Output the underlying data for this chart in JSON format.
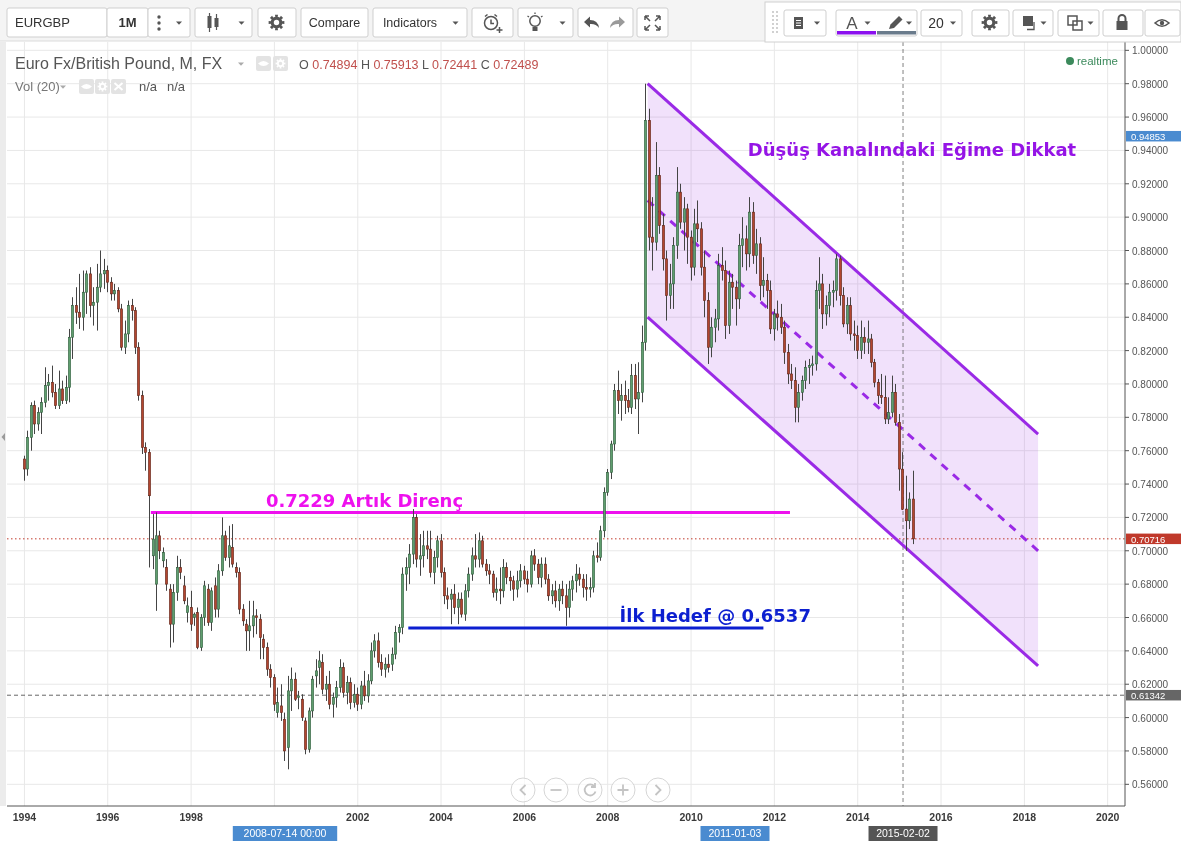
{
  "chart_data": {
    "type": "candlestick",
    "title": "Euro Fx/British Pound, M, FX",
    "subtitle": "O 0.74894 H 0.75913 L 0.72441 C 0.72489",
    "x": [
      "1994-01",
      "1994-02",
      "1994-03",
      "1994-04",
      "1994-05",
      "1994-06",
      "1994-07",
      "1994-08",
      "1994-09",
      "1994-10",
      "1994-11",
      "1994-12",
      "1995-01",
      "1995-02",
      "1995-03",
      "1995-04",
      "1995-05",
      "1995-06",
      "1995-07",
      "1995-08",
      "1995-09",
      "1995-10",
      "1995-11",
      "1995-12",
      "1996-01",
      "1996-02",
      "1996-03",
      "1996-04",
      "1996-05",
      "1996-06",
      "1996-07",
      "1996-08",
      "1996-09",
      "1996-10",
      "1996-11",
      "1996-12",
      "1997-01",
      "1997-02",
      "1997-03",
      "1997-04",
      "1997-05",
      "1997-06",
      "1997-07",
      "1997-08",
      "1997-09",
      "1997-10",
      "1997-11",
      "1997-12",
      "1998-01",
      "1998-02",
      "1998-03",
      "1998-04",
      "1998-05",
      "1998-06",
      "1998-07",
      "1998-08",
      "1998-09",
      "1998-10",
      "1998-11",
      "1998-12",
      "1999-01",
      "1999-02",
      "1999-03",
      "1999-04",
      "1999-05",
      "1999-06",
      "1999-07",
      "1999-08",
      "1999-09",
      "1999-10",
      "1999-11",
      "1999-12",
      "2000-01",
      "2000-02",
      "2000-03",
      "2000-04",
      "2000-05",
      "2000-06",
      "2000-07",
      "2000-08",
      "2000-09",
      "2000-10",
      "2000-11",
      "2000-12",
      "2001-01",
      "2001-02",
      "2001-03",
      "2001-04",
      "2001-05",
      "2001-06",
      "2001-07",
      "2001-08",
      "2001-09",
      "2001-10",
      "2001-11",
      "2001-12",
      "2002-01",
      "2002-02",
      "2002-03",
      "2002-04",
      "2002-05",
      "2002-06",
      "2002-07",
      "2002-08",
      "2002-09",
      "2002-10",
      "2002-11",
      "2002-12",
      "2003-01",
      "2003-02",
      "2003-03",
      "2003-04",
      "2003-05",
      "2003-06",
      "2003-07",
      "2003-08",
      "2003-09",
      "2003-10",
      "2003-11",
      "2003-12",
      "2004-01",
      "2004-02",
      "2004-03",
      "2004-04",
      "2004-05",
      "2004-06",
      "2004-07",
      "2004-08",
      "2004-09",
      "2004-10",
      "2004-11",
      "2004-12",
      "2005-01",
      "2005-02",
      "2005-03",
      "2005-04",
      "2005-05",
      "2005-06",
      "2005-07",
      "2005-08",
      "2005-09",
      "2005-10",
      "2005-11",
      "2005-12",
      "2006-01",
      "2006-02",
      "2006-03",
      "2006-04",
      "2006-05",
      "2006-06",
      "2006-07",
      "2006-08",
      "2006-09",
      "2006-10",
      "2006-11",
      "2006-12",
      "2007-01",
      "2007-02",
      "2007-03",
      "2007-04",
      "2007-05",
      "2007-06",
      "2007-07",
      "2007-08",
      "2007-09",
      "2007-10",
      "2007-11",
      "2007-12",
      "2008-01",
      "2008-02",
      "2008-03",
      "2008-04",
      "2008-05",
      "2008-06",
      "2008-07",
      "2008-08",
      "2008-09",
      "2008-10",
      "2008-11",
      "2008-12",
      "2009-01",
      "2009-02",
      "2009-03",
      "2009-04",
      "2009-05",
      "2009-06",
      "2009-07",
      "2009-08",
      "2009-09",
      "2009-10",
      "2009-11",
      "2009-12",
      "2010-01",
      "2010-02",
      "2010-03",
      "2010-04",
      "2010-05",
      "2010-06",
      "2010-07",
      "2010-08",
      "2010-09",
      "2010-10",
      "2010-11",
      "2010-12",
      "2011-01",
      "2011-02",
      "2011-03",
      "2011-04",
      "2011-05",
      "2011-06",
      "2011-07",
      "2011-08",
      "2011-09",
      "2011-10",
      "2011-11",
      "2011-12",
      "2012-01",
      "2012-02",
      "2012-03",
      "2012-04",
      "2012-05",
      "2012-06",
      "2012-07",
      "2012-08",
      "2012-09",
      "2012-10",
      "2012-11",
      "2012-12",
      "2013-01",
      "2013-02",
      "2013-03",
      "2013-04",
      "2013-05",
      "2013-06",
      "2013-07",
      "2013-08",
      "2013-09",
      "2013-10",
      "2013-11",
      "2013-12",
      "2014-01",
      "2014-02",
      "2014-03",
      "2014-04",
      "2014-05",
      "2014-06",
      "2014-07",
      "2014-08",
      "2014-09",
      "2014-10",
      "2014-11",
      "2014-12",
      "2015-01",
      "2015-02",
      "2015-03",
      "2015-04",
      "2015-05"
    ],
    "ohlc": [
      [
        0.755,
        0.757,
        0.742,
        0.749
      ],
      [
        0.749,
        0.772,
        0.745,
        0.768
      ],
      [
        0.768,
        0.789,
        0.76,
        0.787
      ],
      [
        0.787,
        0.79,
        0.77,
        0.776
      ],
      [
        0.776,
        0.786,
        0.772,
        0.783
      ],
      [
        0.783,
        0.792,
        0.77,
        0.789
      ],
      [
        0.789,
        0.81,
        0.786,
        0.799
      ],
      [
        0.799,
        0.806,
        0.79,
        0.801
      ],
      [
        0.801,
        0.811,
        0.792,
        0.795
      ],
      [
        0.795,
        0.8,
        0.785,
        0.787
      ],
      [
        0.787,
        0.808,
        0.785,
        0.797
      ],
      [
        0.797,
        0.802,
        0.788,
        0.79
      ],
      [
        0.79,
        0.805,
        0.788,
        0.798
      ],
      [
        0.798,
        0.833,
        0.789,
        0.828
      ],
      [
        0.828,
        0.852,
        0.815,
        0.847
      ],
      [
        0.847,
        0.858,
        0.836,
        0.843
      ],
      [
        0.843,
        0.866,
        0.833,
        0.84
      ],
      [
        0.84,
        0.868,
        0.832,
        0.855
      ],
      [
        0.855,
        0.868,
        0.842,
        0.866
      ],
      [
        0.866,
        0.87,
        0.84,
        0.847
      ],
      [
        0.847,
        0.858,
        0.835,
        0.849
      ],
      [
        0.849,
        0.872,
        0.832,
        0.858
      ],
      [
        0.858,
        0.88,
        0.855,
        0.866
      ],
      [
        0.866,
        0.875,
        0.857,
        0.868
      ],
      [
        0.868,
        0.871,
        0.855,
        0.861
      ],
      [
        0.861,
        0.864,
        0.85,
        0.854
      ],
      [
        0.854,
        0.86,
        0.85,
        0.856
      ],
      [
        0.856,
        0.858,
        0.843,
        0.845
      ],
      [
        0.845,
        0.848,
        0.82,
        0.822
      ],
      [
        0.822,
        0.838,
        0.818,
        0.83
      ],
      [
        0.83,
        0.85,
        0.825,
        0.847
      ],
      [
        0.847,
        0.851,
        0.838,
        0.844
      ],
      [
        0.844,
        0.846,
        0.818,
        0.822
      ],
      [
        0.822,
        0.825,
        0.79,
        0.793
      ],
      [
        0.793,
        0.796,
        0.758,
        0.762
      ],
      [
        0.762,
        0.765,
        0.748,
        0.759
      ],
      [
        0.759,
        0.761,
        0.69,
        0.733
      ],
      [
        0.697,
        0.722,
        0.689,
        0.707
      ],
      [
        0.68,
        0.723,
        0.664,
        0.709
      ],
      [
        0.709,
        0.712,
        0.695,
        0.7
      ],
      [
        0.694,
        0.702,
        0.69,
        0.699
      ],
      [
        0.69,
        0.695,
        0.676,
        0.68
      ],
      [
        0.677,
        0.68,
        0.642,
        0.656
      ],
      [
        0.656,
        0.68,
        0.645,
        0.675
      ],
      [
        0.675,
        0.697,
        0.67,
        0.69
      ],
      [
        0.69,
        0.695,
        0.683,
        0.687
      ],
      [
        0.679,
        0.685,
        0.668,
        0.67
      ],
      [
        0.663,
        0.672,
        0.657,
        0.667
      ],
      [
        0.666,
        0.676,
        0.652,
        0.656
      ],
      [
        0.66,
        0.663,
        0.655,
        0.662
      ],
      [
        0.663,
        0.666,
        0.641,
        0.642
      ],
      [
        0.642,
        0.662,
        0.64,
        0.66
      ],
      [
        0.66,
        0.682,
        0.655,
        0.679
      ],
      [
        0.677,
        0.68,
        0.655,
        0.657
      ],
      [
        0.657,
        0.678,
        0.652,
        0.676
      ],
      [
        0.679,
        0.684,
        0.66,
        0.665
      ],
      [
        0.665,
        0.692,
        0.66,
        0.688
      ],
      [
        0.688,
        0.72,
        0.685,
        0.709
      ],
      [
        0.709,
        0.712,
        0.694,
        0.696
      ],
      [
        0.696,
        0.715,
        0.69,
        0.703
      ],
      [
        0.702,
        0.716,
        0.69,
        0.692
      ],
      [
        0.69,
        0.693,
        0.684,
        0.687
      ],
      [
        0.687,
        0.69,
        0.662,
        0.665
      ],
      [
        0.665,
        0.668,
        0.655,
        0.658
      ],
      [
        0.656,
        0.659,
        0.64,
        0.652
      ],
      [
        0.652,
        0.67,
        0.64,
        0.655
      ],
      [
        0.655,
        0.67,
        0.648,
        0.661
      ],
      [
        0.661,
        0.665,
        0.65,
        0.66
      ],
      [
        0.659,
        0.662,
        0.635,
        0.648
      ],
      [
        0.647,
        0.65,
        0.635,
        0.642
      ],
      [
        0.642,
        0.645,
        0.625,
        0.629
      ],
      [
        0.629,
        0.632,
        0.618,
        0.624
      ],
      [
        0.624,
        0.626,
        0.604,
        0.608
      ],
      [
        0.603,
        0.618,
        0.6,
        0.609
      ],
      [
        0.607,
        0.62,
        0.598,
        0.603
      ],
      [
        0.599,
        0.603,
        0.574,
        0.58
      ],
      [
        0.582,
        0.625,
        0.569,
        0.616
      ],
      [
        0.616,
        0.63,
        0.604,
        0.623
      ],
      [
        0.623,
        0.627,
        0.61,
        0.611
      ],
      [
        0.612,
        0.616,
        0.605,
        0.613
      ],
      [
        0.611,
        0.614,
        0.598,
        0.6
      ],
      [
        0.598,
        0.6,
        0.578,
        0.581
      ],
      [
        0.581,
        0.606,
        0.579,
        0.604
      ],
      [
        0.604,
        0.625,
        0.6,
        0.623
      ],
      [
        0.625,
        0.635,
        0.618,
        0.628
      ],
      [
        0.63,
        0.64,
        0.62,
        0.634
      ],
      [
        0.633,
        0.638,
        0.614,
        0.617
      ],
      [
        0.617,
        0.625,
        0.61,
        0.62
      ],
      [
        0.62,
        0.628,
        0.605,
        0.608
      ],
      [
        0.608,
        0.615,
        0.6,
        0.612
      ],
      [
        0.612,
        0.622,
        0.606,
        0.618
      ],
      [
        0.618,
        0.635,
        0.615,
        0.63
      ],
      [
        0.63,
        0.633,
        0.612,
        0.615
      ],
      [
        0.615,
        0.625,
        0.608,
        0.621
      ],
      [
        0.621,
        0.624,
        0.605,
        0.609
      ],
      [
        0.609,
        0.62,
        0.606,
        0.614
      ],
      [
        0.614,
        0.618,
        0.604,
        0.608
      ],
      [
        0.608,
        0.622,
        0.605,
        0.619
      ],
      [
        0.619,
        0.628,
        0.61,
        0.613
      ],
      [
        0.613,
        0.626,
        0.609,
        0.622
      ],
      [
        0.622,
        0.645,
        0.62,
        0.64
      ],
      [
        0.64,
        0.65,
        0.636,
        0.646
      ],
      [
        0.646,
        0.651,
        0.63,
        0.633
      ],
      [
        0.633,
        0.638,
        0.625,
        0.629
      ],
      [
        0.629,
        0.636,
        0.624,
        0.632
      ],
      [
        0.632,
        0.638,
        0.627,
        0.63
      ],
      [
        0.632,
        0.642,
        0.628,
        0.638
      ],
      [
        0.638,
        0.655,
        0.635,
        0.651
      ],
      [
        0.651,
        0.656,
        0.645,
        0.654
      ],
      [
        0.654,
        0.69,
        0.65,
        0.686
      ],
      [
        0.686,
        0.696,
        0.676,
        0.69
      ],
      [
        0.69,
        0.704,
        0.68,
        0.698
      ],
      [
        0.698,
        0.725,
        0.692,
        0.72
      ],
      [
        0.72,
        0.722,
        0.69,
        0.695
      ],
      [
        0.695,
        0.71,
        0.685,
        0.697
      ],
      [
        0.697,
        0.712,
        0.69,
        0.703
      ],
      [
        0.703,
        0.712,
        0.695,
        0.701
      ],
      [
        0.701,
        0.712,
        0.684,
        0.687
      ],
      [
        0.687,
        0.7,
        0.68,
        0.696
      ],
      [
        0.696,
        0.709,
        0.69,
        0.706
      ],
      [
        0.706,
        0.71,
        0.684,
        0.687
      ],
      [
        0.687,
        0.69,
        0.668,
        0.673
      ],
      [
        0.673,
        0.678,
        0.665,
        0.671
      ],
      [
        0.671,
        0.677,
        0.656,
        0.674
      ],
      [
        0.674,
        0.68,
        0.662,
        0.666
      ],
      [
        0.666,
        0.675,
        0.656,
        0.671
      ],
      [
        0.671,
        0.675,
        0.66,
        0.662
      ],
      [
        0.662,
        0.68,
        0.658,
        0.676
      ],
      [
        0.676,
        0.69,
        0.672,
        0.686
      ],
      [
        0.686,
        0.702,
        0.682,
        0.697
      ],
      [
        0.697,
        0.71,
        0.69,
        0.695
      ],
      [
        0.695,
        0.711,
        0.69,
        0.706
      ],
      [
        0.706,
        0.709,
        0.69,
        0.692
      ],
      [
        0.692,
        0.695,
        0.685,
        0.688
      ],
      [
        0.688,
        0.692,
        0.68,
        0.686
      ],
      [
        0.686,
        0.688,
        0.672,
        0.675
      ],
      [
        0.675,
        0.684,
        0.67,
        0.677
      ],
      [
        0.677,
        0.69,
        0.668,
        0.676
      ],
      [
        0.676,
        0.695,
        0.672,
        0.69
      ],
      [
        0.69,
        0.693,
        0.68,
        0.684
      ],
      [
        0.684,
        0.688,
        0.676,
        0.682
      ],
      [
        0.682,
        0.685,
        0.67,
        0.677
      ],
      [
        0.677,
        0.688,
        0.672,
        0.682
      ],
      [
        0.682,
        0.692,
        0.678,
        0.688
      ],
      [
        0.688,
        0.691,
        0.68,
        0.683
      ],
      [
        0.683,
        0.688,
        0.675,
        0.68
      ],
      [
        0.68,
        0.7,
        0.678,
        0.697
      ],
      [
        0.697,
        0.701,
        0.688,
        0.692
      ],
      [
        0.692,
        0.695,
        0.68,
        0.684
      ],
      [
        0.684,
        0.696,
        0.678,
        0.692
      ],
      [
        0.692,
        0.696,
        0.68,
        0.683
      ],
      [
        0.683,
        0.686,
        0.67,
        0.673
      ],
      [
        0.673,
        0.68,
        0.668,
        0.676
      ],
      [
        0.676,
        0.682,
        0.666,
        0.67
      ],
      [
        0.67,
        0.68,
        0.664,
        0.677
      ],
      [
        0.677,
        0.682,
        0.668,
        0.673
      ],
      [
        0.673,
        0.68,
        0.655,
        0.666
      ],
      [
        0.666,
        0.682,
        0.66,
        0.677
      ],
      [
        0.677,
        0.685,
        0.67,
        0.682
      ],
      [
        0.682,
        0.692,
        0.675,
        0.686
      ],
      [
        0.686,
        0.69,
        0.679,
        0.683
      ],
      [
        0.683,
        0.686,
        0.672,
        0.678
      ],
      [
        0.678,
        0.686,
        0.67,
        0.677
      ],
      [
        0.677,
        0.684,
        0.672,
        0.678
      ],
      [
        0.678,
        0.7,
        0.675,
        0.697
      ],
      [
        0.697,
        0.705,
        0.693,
        0.696
      ],
      [
        0.696,
        0.715,
        0.694,
        0.712
      ],
      [
        0.712,
        0.738,
        0.708,
        0.735
      ],
      [
        0.735,
        0.749,
        0.733,
        0.747
      ],
      [
        0.747,
        0.766,
        0.743,
        0.764
      ],
      [
        0.764,
        0.8,
        0.76,
        0.796
      ],
      [
        0.796,
        0.808,
        0.782,
        0.79
      ],
      [
        0.79,
        0.8,
        0.778,
        0.793
      ],
      [
        0.793,
        0.802,
        0.782,
        0.79
      ],
      [
        0.79,
        0.797,
        0.783,
        0.786
      ],
      [
        0.786,
        0.812,
        0.782,
        0.805
      ],
      [
        0.805,
        0.812,
        0.785,
        0.791
      ],
      [
        0.791,
        0.813,
        0.77,
        0.795
      ],
      [
        0.795,
        0.835,
        0.789,
        0.825
      ],
      [
        0.825,
        0.98,
        0.82,
        0.958
      ],
      [
        0.958,
        0.965,
        0.88,
        0.888
      ],
      [
        0.888,
        0.912,
        0.868,
        0.885
      ],
      [
        0.885,
        0.945,
        0.88,
        0.925
      ],
      [
        0.925,
        0.93,
        0.89,
        0.895
      ],
      [
        0.895,
        0.902,
        0.868,
        0.875
      ],
      [
        0.875,
        0.88,
        0.838,
        0.853
      ],
      [
        0.853,
        0.872,
        0.845,
        0.86
      ],
      [
        0.86,
        0.888,
        0.845,
        0.883
      ],
      [
        0.883,
        0.93,
        0.875,
        0.915
      ],
      [
        0.915,
        0.92,
        0.893,
        0.897
      ],
      [
        0.897,
        0.912,
        0.88,
        0.905
      ],
      [
        0.905,
        0.908,
        0.872,
        0.888
      ],
      [
        0.888,
        0.892,
        0.862,
        0.87
      ],
      [
        0.87,
        0.905,
        0.865,
        0.896
      ],
      [
        0.896,
        0.91,
        0.885,
        0.893
      ],
      [
        0.893,
        0.897,
        0.865,
        0.87
      ],
      [
        0.87,
        0.88,
        0.84,
        0.85
      ],
      [
        0.85,
        0.855,
        0.812,
        0.822
      ],
      [
        0.822,
        0.84,
        0.816,
        0.834
      ],
      [
        0.834,
        0.845,
        0.825,
        0.839
      ],
      [
        0.839,
        0.878,
        0.832,
        0.871
      ],
      [
        0.871,
        0.882,
        0.862,
        0.868
      ],
      [
        0.868,
        0.874,
        0.827,
        0.835
      ],
      [
        0.835,
        0.868,
        0.83,
        0.861
      ],
      [
        0.861,
        0.866,
        0.845,
        0.858
      ],
      [
        0.858,
        0.862,
        0.835,
        0.851
      ],
      [
        0.851,
        0.89,
        0.845,
        0.883
      ],
      [
        0.883,
        0.9,
        0.87,
        0.887
      ],
      [
        0.887,
        0.895,
        0.868,
        0.878
      ],
      [
        0.878,
        0.912,
        0.87,
        0.903
      ],
      [
        0.903,
        0.909,
        0.872,
        0.877
      ],
      [
        0.877,
        0.893,
        0.866,
        0.884
      ],
      [
        0.884,
        0.888,
        0.85,
        0.859
      ],
      [
        0.859,
        0.876,
        0.852,
        0.862
      ],
      [
        0.862,
        0.866,
        0.845,
        0.856
      ],
      [
        0.856,
        0.862,
        0.83,
        0.833
      ],
      [
        0.833,
        0.845,
        0.826,
        0.842
      ],
      [
        0.842,
        0.85,
        0.832,
        0.84
      ],
      [
        0.84,
        0.848,
        0.83,
        0.834
      ],
      [
        0.834,
        0.838,
        0.812,
        0.819
      ],
      [
        0.819,
        0.824,
        0.8,
        0.806
      ],
      [
        0.806,
        0.812,
        0.797,
        0.802
      ],
      [
        0.802,
        0.81,
        0.777,
        0.786
      ],
      [
        0.786,
        0.8,
        0.777,
        0.795
      ],
      [
        0.795,
        0.805,
        0.79,
        0.802
      ],
      [
        0.802,
        0.814,
        0.797,
        0.81
      ],
      [
        0.81,
        0.815,
        0.8,
        0.811
      ],
      [
        0.811,
        0.817,
        0.805,
        0.812
      ],
      [
        0.812,
        0.862,
        0.808,
        0.856
      ],
      [
        0.856,
        0.876,
        0.845,
        0.86
      ],
      [
        0.86,
        0.866,
        0.833,
        0.842
      ],
      [
        0.842,
        0.853,
        0.835,
        0.847
      ],
      [
        0.847,
        0.86,
        0.84,
        0.855
      ],
      [
        0.855,
        0.862,
        0.846,
        0.856
      ],
      [
        0.856,
        0.878,
        0.85,
        0.875
      ],
      [
        0.875,
        0.877,
        0.847,
        0.853
      ],
      [
        0.853,
        0.858,
        0.834,
        0.836
      ],
      [
        0.836,
        0.852,
        0.83,
        0.847
      ],
      [
        0.847,
        0.852,
        0.826,
        0.83
      ],
      [
        0.83,
        0.838,
        0.82,
        0.829
      ],
      [
        0.829,
        0.835,
        0.815,
        0.82
      ],
      [
        0.82,
        0.838,
        0.815,
        0.828
      ],
      [
        0.828,
        0.834,
        0.818,
        0.825
      ],
      [
        0.825,
        0.838,
        0.818,
        0.827
      ],
      [
        0.827,
        0.83,
        0.81,
        0.813
      ],
      [
        0.813,
        0.815,
        0.798,
        0.801
      ],
      [
        0.801,
        0.803,
        0.788,
        0.793
      ],
      [
        0.793,
        0.806,
        0.788,
        0.792
      ],
      [
        0.792,
        0.805,
        0.776,
        0.779
      ],
      [
        0.779,
        0.792,
        0.776,
        0.783
      ],
      [
        0.783,
        0.805,
        0.78,
        0.795
      ],
      [
        0.795,
        0.8,
        0.775,
        0.777
      ],
      [
        0.777,
        0.782,
        0.736,
        0.749
      ],
      [
        0.74894,
        0.75913,
        0.72441,
        0.72489
      ],
      [
        0.725,
        0.745,
        0.7,
        0.718
      ],
      [
        0.718,
        0.735,
        0.713,
        0.731
      ],
      [
        0.731,
        0.748,
        0.704,
        0.70716
      ]
    ],
    "series": [
      {
        "type": "line",
        "x": [
          "1997-01-13",
          "2012-05-17"
        ],
        "values": [
          0.7229,
          0.7229
        ],
        "color": "#ee11ee"
      },
      {
        "type": "line",
        "x": [
          "2003-03-20",
          "2011-09-27"
        ],
        "values": [
          0.6537,
          0.6537
        ],
        "color": "#0c1fd0"
      },
      {
        "type": "line",
        "x": [
          "2008-12-16",
          "2018-05-01"
        ],
        "values": [
          0.98,
          0.77
        ],
        "color": "#9a2ae6"
      },
      {
        "type": "line",
        "x": [
          "2008-12-16",
          "2018-05-01"
        ],
        "values": [
          0.84,
          0.631
        ],
        "color": "#9a2ae6"
      },
      {
        "type": "line",
        "x": [
          "2008-12-16",
          "2018-05-01"
        ],
        "values": [
          0.91,
          0.7
        ],
        "color": "#9a2ae6",
        "line_style": "dashed",
        "lower": [
          0.84,
          0.631
        ],
        "upper": [
          0.98,
          0.77
        ]
      }
    ],
    "xlim": [
      "1993-08",
      "2020-06"
    ],
    "xticks": [
      "1994",
      "1996",
      "1998",
      {
        "value": "2000",
        "label": null
      },
      "2002",
      "2004",
      "2006",
      "2008",
      "2010",
      "2012",
      "2014",
      "2016",
      "2018",
      "2020"
    ],
    "ylim": [
      0.547,
      1.005
    ],
    "yticks": [
      {
        "value": 0.56,
        "label": "0.56000"
      },
      {
        "value": 0.58,
        "label": "0.58000"
      },
      {
        "value": 0.6,
        "label": "0.60000"
      },
      {
        "value": 0.62,
        "label": "0.62000"
      },
      {
        "value": 0.64,
        "label": "0.64000"
      },
      {
        "value": 0.66,
        "label": "0.66000"
      },
      {
        "value": 0.68,
        "label": "0.68000"
      },
      {
        "value": 0.7,
        "label": "0.70000"
      },
      {
        "value": 0.72,
        "label": "0.72000"
      },
      {
        "value": 0.74,
        "label": "0.74000"
      },
      {
        "value": 0.76,
        "label": "0.76000"
      },
      {
        "value": 0.78,
        "label": "0.78000"
      },
      {
        "value": 0.8,
        "label": "0.80000"
      },
      {
        "value": 0.82,
        "label": "0.82000"
      },
      {
        "value": 0.84,
        "label": "0.84000"
      },
      {
        "value": 0.86,
        "label": "0.86000"
      },
      {
        "value": 0.88,
        "label": "0.88000"
      },
      {
        "value": 0.9,
        "label": "0.90000"
      },
      {
        "value": 0.92,
        "label": "0.92000"
      },
      {
        "value": 0.94,
        "label": "0.94000"
      },
      {
        "value": 0.96,
        "label": "0.96000"
      },
      {
        "value": 0.98,
        "label": "0.98000"
      },
      {
        "value": 1.0,
        "label": "1.00000"
      }
    ],
    "grid": true,
    "ref_lines": [
      {
        "axis": "y",
        "value": 0.70716,
        "label": "0.70716",
        "color": "#c0392b",
        "line_style": "dotted"
      },
      {
        "axis": "y",
        "value": 0.61342,
        "label": "0.61342",
        "color": "#666666",
        "line_style": "dashed"
      },
      {
        "axis": "x",
        "value": "2015-02-02",
        "label": "2015-02-02",
        "color": "#555555",
        "line_style": "dashed"
      }
    ],
    "annotations": [
      "EURGBP",
      "1M",
      "Compare",
      "Indicators",
      "A",
      "20",
      "Vol (20)",
      "n/a",
      "n/a",
      "realtime",
      {
        "text": "0.7229 Artık Direnç",
        "x": "2002-03",
        "y": 0.7229
      },
      {
        "text": "İlk Hedef @ 0.6537",
        "x": "2010-08",
        "y": 0.6537
      },
      "Düşüş Kanalındaki Eğime Dikkat",
      "0.94853",
      "2011-01-03",
      "2008-07-14 00:00"
    ]
  }
}
